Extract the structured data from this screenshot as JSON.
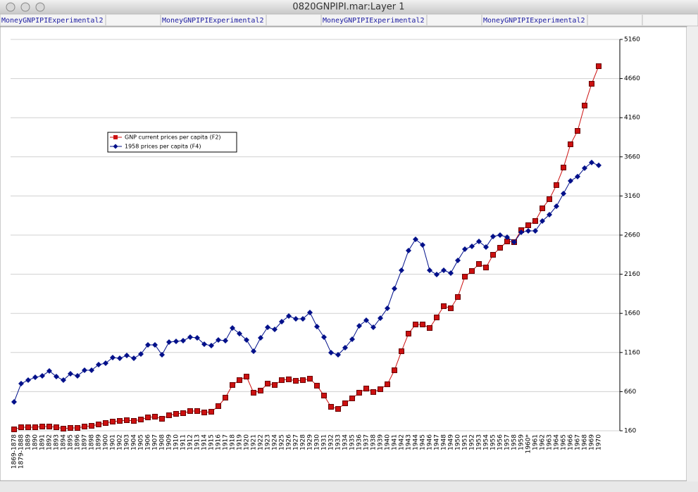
{
  "window_title": "0820GNPIPI.mar:Layer 1",
  "tabs": [
    "MoneyGNPIPIExperimental2",
    "MoneyGNPIPIExperimental2",
    "MoneyGNPIPIExperimental2",
    "MoneyGNPIPIExperimental2"
  ],
  "chart_data": {
    "type": "line",
    "categories": [
      "1869-1878",
      "1879-1888",
      "1889",
      "1890",
      "1891",
      "1892",
      "1893",
      "1894",
      "1895",
      "1896",
      "1897",
      "1898",
      "1899",
      "1900",
      "1901",
      "1902",
      "1903",
      "1904",
      "1905",
      "1906",
      "1907",
      "1908",
      "1909",
      "1910",
      "1911",
      "1912",
      "1913",
      "1914",
      "1915",
      "1916",
      "1917",
      "1918",
      "1919",
      "1920",
      "1921",
      "1922",
      "1923",
      "1924",
      "1925",
      "1926",
      "1927",
      "1928",
      "1929",
      "1930",
      "1931",
      "1932",
      "1933",
      "1934",
      "1935",
      "1936",
      "1937",
      "1938",
      "1939",
      "1940",
      "1941",
      "1942",
      "1943",
      "1944",
      "1945",
      "1946",
      "1947",
      "1948",
      "1949",
      "1950",
      "1951",
      "1952",
      "1953",
      "1954",
      "1955",
      "1956",
      "1957",
      "1958",
      "1959",
      "1960*",
      "1961",
      "1962",
      "1963",
      "1964",
      "1965",
      "1966",
      "1967",
      "1968",
      "1969",
      "1970"
    ],
    "series": [
      {
        "name": "GNP current prices per capita (F2)",
        "color": "#cc1010",
        "marker": "square",
        "values": [
          178,
          205,
          205,
          205,
          214,
          214,
          205,
          187,
          196,
          196,
          214,
          223,
          241,
          259,
          277,
          286,
          295,
          286,
          304,
          331,
          340,
          313,
          358,
          376,
          385,
          412,
          412,
          394,
          403,
          475,
          583,
          745,
          807,
          852,
          646,
          673,
          762,
          745,
          807,
          817,
          798,
          807,
          825,
          736,
          610,
          466,
          439,
          511,
          574,
          646,
          700,
          655,
          691,
          754,
          933,
          1176,
          1401,
          1518,
          1518,
          1473,
          1608,
          1752,
          1725,
          1869,
          2129,
          2201,
          2291,
          2246,
          2408,
          2498,
          2579,
          2570,
          2723,
          2786,
          2840,
          3002,
          3119,
          3299,
          3523,
          3820,
          3991,
          4315,
          4593,
          4818
        ]
      },
      {
        "name": "1958 prices per capita (F4)",
        "color": "#00108a",
        "marker": "diamond",
        "values": [
          529,
          762,
          807,
          843,
          861,
          924,
          852,
          807,
          888,
          861,
          933,
          933,
          1005,
          1023,
          1095,
          1086,
          1122,
          1086,
          1140,
          1257,
          1257,
          1131,
          1293,
          1302,
          1311,
          1356,
          1347,
          1266,
          1248,
          1320,
          1311,
          1473,
          1401,
          1320,
          1176,
          1347,
          1482,
          1455,
          1554,
          1626,
          1590,
          1590,
          1671,
          1491,
          1356,
          1158,
          1131,
          1221,
          1329,
          1500,
          1572,
          1482,
          1599,
          1725,
          1977,
          2210,
          2462,
          2606,
          2534,
          2210,
          2156,
          2210,
          2174,
          2336,
          2480,
          2516,
          2579,
          2507,
          2642,
          2660,
          2633,
          2570,
          2696,
          2714,
          2714,
          2840,
          2921,
          3029,
          3191,
          3353,
          3407,
          3515,
          3587,
          3551
        ]
      }
    ],
    "ylim": [
      160,
      5160
    ],
    "yticks": [
      160,
      660,
      1160,
      1660,
      2160,
      2660,
      3160,
      3660,
      4160,
      4660,
      5160
    ],
    "grid": true,
    "legend": "upper left"
  }
}
